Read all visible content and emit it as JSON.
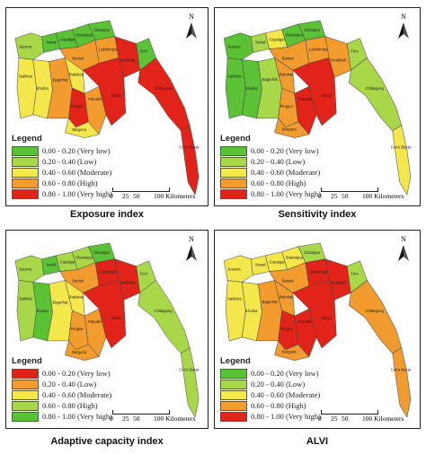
{
  "legend_title": "Legend",
  "scale": {
    "ticks": [
      "0",
      "25",
      "50",
      "100 Kilometers"
    ]
  },
  "north_label": "N",
  "place_names": [
    "Jessore",
    "Narail",
    "Gopalganj",
    "Shariatpur",
    "Chandpur",
    "Satkhira",
    "Khulna",
    "Bagerhat",
    "Barisal",
    "Jhalokati",
    "Lakshmipur",
    "Noakhali",
    "Feni",
    "Pirojpur",
    "Patuakhali",
    "Bhola",
    "Barguna",
    "Chittagong",
    "Cox's Bazar"
  ],
  "colors": {
    "very_low": "#5bc236",
    "low": "#a8d84a",
    "moderate": "#f4e74c",
    "high": "#f29b2e",
    "very_high": "#e2231a"
  },
  "panels": [
    {
      "id": "exposure",
      "caption": "Exposure index",
      "legend": [
        {
          "label": "0.00 - 0.20 (Very low)",
          "color": "#5bc236"
        },
        {
          "label": "0.20 - 0.40 (Low)",
          "color": "#a8d84a"
        },
        {
          "label": "0.40 - 0.60 (Moderate)",
          "color": "#f4e74c"
        },
        {
          "label": "0.60 - 0.80 (High)",
          "color": "#f29b2e"
        },
        {
          "label": "0.80 - 1.00 (Very high)",
          "color": "#e2231a"
        }
      ],
      "fills": [
        "#a8d84a",
        "#5bc236",
        "#5bc236",
        "#5bc236",
        "#5bc236",
        "#f4e74c",
        "#f4e74c",
        "#f29b2e",
        "#f29b2e",
        "#f4e74c",
        "#f29b2e",
        "#e2231a",
        "#5bc236",
        "#e2231a",
        "#f29b2e",
        "#e2231a",
        "#f4e74c",
        "#e2231a",
        "#e2231a"
      ]
    },
    {
      "id": "sensitivity",
      "caption": "Sensitivity index",
      "legend": [
        {
          "label": "0.00 - 0.20 (Very low)",
          "color": "#5bc236"
        },
        {
          "label": "0.20 - 0.40 (Low)",
          "color": "#a8d84a"
        },
        {
          "label": "0.40 - 0.60 (Moderate)",
          "color": "#f4e74c"
        },
        {
          "label": "0.60 - 0.80 (High)",
          "color": "#f29b2e"
        },
        {
          "label": "0.80 - 1.00 (Very high)",
          "color": "#e2231a"
        }
      ],
      "fills": [
        "#5bc236",
        "#a8d84a",
        "#f4e74c",
        "#5bc236",
        "#5bc236",
        "#5bc236",
        "#5bc236",
        "#a8d84a",
        "#f29b2e",
        "#f29b2e",
        "#f29b2e",
        "#f29b2e",
        "#a8d84a",
        "#f29b2e",
        "#e2231a",
        "#e2231a",
        "#f29b2e",
        "#a8d84a",
        "#f4e74c"
      ]
    },
    {
      "id": "adaptive",
      "caption": "Adaptive capacity index",
      "legend": [
        {
          "label": "0.00 - 0.20 (Very low)",
          "color": "#e2231a"
        },
        {
          "label": "0.20 - 0.40 (Low)",
          "color": "#f29b2e"
        },
        {
          "label": "0.40 - 0.60 (Moderate)",
          "color": "#f4e74c"
        },
        {
          "label": "0.60 - 0.80 (High)",
          "color": "#a8d84a"
        },
        {
          "label": "0.80 - 1.00 (Very high)",
          "color": "#5bc236"
        }
      ],
      "fills": [
        "#a8d84a",
        "#5bc236",
        "#a8d84a",
        "#a8d84a",
        "#5bc236",
        "#a8d84a",
        "#5bc236",
        "#f4e74c",
        "#f29b2e",
        "#f4e74c",
        "#e2231a",
        "#e2231a",
        "#a8d84a",
        "#f29b2e",
        "#f29b2e",
        "#e2231a",
        "#f29b2e",
        "#a8d84a",
        "#a8d84a"
      ]
    },
    {
      "id": "alvi",
      "caption": "ALVI",
      "legend": [
        {
          "label": "0.00 - 0.20 (Very low)",
          "color": "#5bc236"
        },
        {
          "label": "0.20 - 0.40 (Low)",
          "color": "#a8d84a"
        },
        {
          "label": "0.40 - 0.60 (Moderate)",
          "color": "#f4e74c"
        },
        {
          "label": "0.60 - 0.80 (High)",
          "color": "#f29b2e"
        },
        {
          "label": "0.80 - 1.00 (Very high)",
          "color": "#e2231a"
        }
      ],
      "fills": [
        "#f4e74c",
        "#f4e74c",
        "#f4e74c",
        "#f4e74c",
        "#a8d84a",
        "#f4e74c",
        "#f4e74c",
        "#f29b2e",
        "#f29b2e",
        "#f29b2e",
        "#e2231a",
        "#e2231a",
        "#a8d84a",
        "#e2231a",
        "#e2231a",
        "#e2231a",
        "#f29b2e",
        "#f29b2e",
        "#f29b2e"
      ]
    }
  ]
}
